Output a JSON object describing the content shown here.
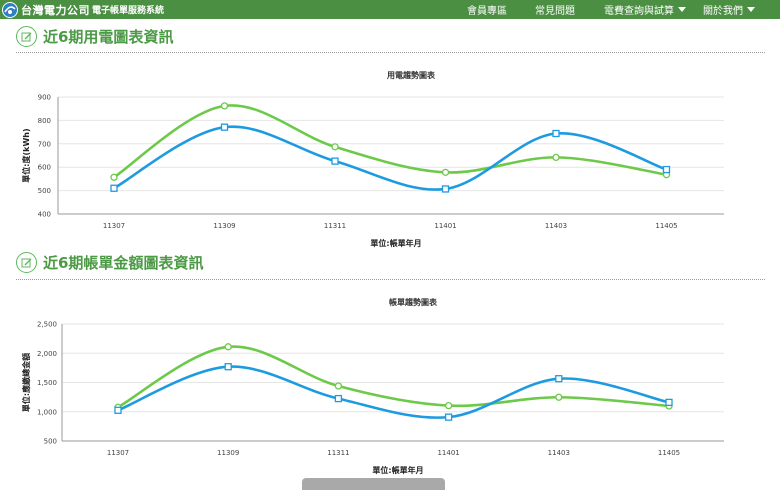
{
  "header": {
    "logo_text": "台灣電力公司",
    "logo_subtitle": "電子帳單服務系統",
    "nav": [
      {
        "label": "會員專區",
        "dropdown": false
      },
      {
        "label": "常見問題",
        "dropdown": false
      },
      {
        "label": "電費查詢與試算",
        "dropdown": true
      },
      {
        "label": "關於我們",
        "dropdown": true
      }
    ]
  },
  "sections": [
    {
      "title": "近6期用電圖表資訊",
      "icon": "edit-icon"
    },
    {
      "title": "近6期帳單金額圖表資訊",
      "icon": "edit-icon"
    }
  ],
  "colors": {
    "header_bg": "#4b8f43",
    "series_blue": "#1e9be0",
    "series_green": "#6dc94a",
    "heading_green": "#4c9a46"
  },
  "chart_data": [
    {
      "type": "line",
      "title": "用電趨勢圖表",
      "xlabel": "單位:帳單年月",
      "ylabel": "單位:度(kWh)",
      "categories": [
        "11307",
        "11309",
        "11311",
        "11401",
        "11403",
        "11405"
      ],
      "ylim": [
        400,
        900
      ],
      "yticks": [
        "400",
        "500",
        "600",
        "700",
        "800",
        "900"
      ],
      "grid": true,
      "smooth": true,
      "series": [
        {
          "color": "#6dc94a",
          "marker": "circle",
          "values": [
            557,
            862,
            687,
            578,
            642,
            568
          ]
        },
        {
          "color": "#1e9be0",
          "marker": "square",
          "values": [
            510,
            771,
            626,
            507,
            744,
            590
          ]
        }
      ]
    },
    {
      "type": "line",
      "title": "帳單趨勢圖表",
      "xlabel": "單位:帳單年月",
      "ylabel": "單位:應繳總金額",
      "categories": [
        "11307",
        "11309",
        "11311",
        "11401",
        "11403",
        "11405"
      ],
      "ylim": [
        500,
        2500
      ],
      "yticks": [
        "500",
        "1,000",
        "1,500",
        "2,000",
        "2,500"
      ],
      "grid": true,
      "smooth": true,
      "series": [
        {
          "color": "#6dc94a",
          "marker": "circle",
          "values": [
            1077,
            2110,
            1440,
            1105,
            1248,
            1098
          ]
        },
        {
          "color": "#1e9be0",
          "marker": "square",
          "values": [
            1025,
            1770,
            1225,
            908,
            1565,
            1160
          ]
        }
      ]
    }
  ]
}
